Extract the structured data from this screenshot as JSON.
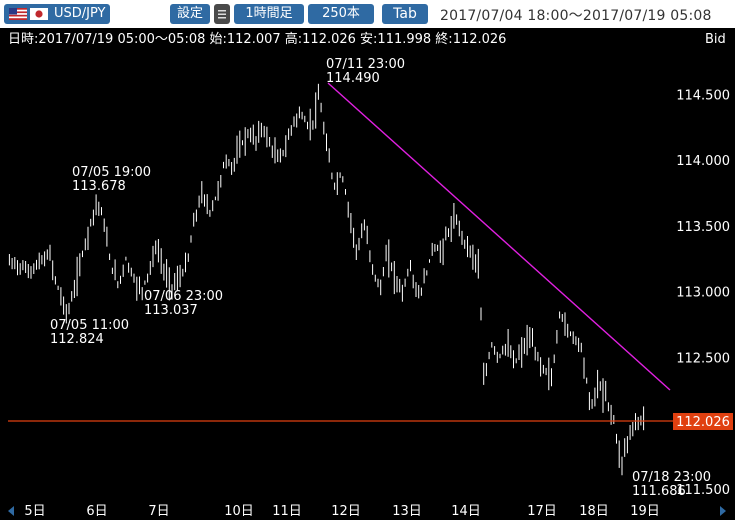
{
  "toolbar": {
    "pair_label": "USD/JPY",
    "settings_label": "設定",
    "timeframe_label": "1時間足",
    "bars_label": "250本",
    "tab_label": "Tab",
    "range_text": "2017/07/04 18:00～2017/07/19 05:08"
  },
  "info": {
    "ohlc_text": "日時:2017/07/19 05:00～05:08 始:112.007 高:112.026 安:111.998 終:112.026",
    "price_type": "Bid"
  },
  "colors": {
    "background": "#000000",
    "candle": "#ffffff",
    "trendline": "#e020e0",
    "current_price_line": "#e04010",
    "current_price_label_bg": "#e04010",
    "toolbar_button": "#2f6aa3"
  },
  "chart_data": {
    "type": "candlestick",
    "title": "",
    "x_ticks": [
      "5日",
      "6日",
      "7日",
      "10日",
      "11日",
      "12日",
      "13日",
      "14日",
      "17日",
      "18日",
      "19日"
    ],
    "y_ticks": [
      "114.500",
      "114.000",
      "113.500",
      "113.000",
      "112.500",
      "111.500"
    ],
    "ylim": [
      111.43,
      114.7
    ],
    "current_price": "112.026",
    "close_path": [
      [
        0,
        113.22
      ],
      [
        0.4,
        113.2
      ],
      [
        0.8,
        113.15
      ],
      [
        1.2,
        113.22
      ],
      [
        1.6,
        113.28
      ],
      [
        1.8,
        113.1
      ],
      [
        2.1,
        112.92
      ],
      [
        2.3,
        112.824
      ],
      [
        2.6,
        113.05
      ],
      [
        2.9,
        113.3
      ],
      [
        3.1,
        113.45
      ],
      [
        3.3,
        113.6
      ],
      [
        3.5,
        113.678
      ],
      [
        3.7,
        113.55
      ],
      [
        4.0,
        113.2
      ],
      [
        4.3,
        113.05
      ],
      [
        4.6,
        113.25
      ],
      [
        4.9,
        113.1
      ],
      [
        5.2,
        113.0
      ],
      [
        5.5,
        113.15
      ],
      [
        5.8,
        113.35
      ],
      [
        6.1,
        113.15
      ],
      [
        6.4,
        113.037
      ],
      [
        6.7,
        113.1
      ],
      [
        7.0,
        113.2
      ],
      [
        7.3,
        113.55
      ],
      [
        7.6,
        113.75
      ],
      [
        7.9,
        113.6
      ],
      [
        8.2,
        113.75
      ],
      [
        8.5,
        114.0
      ],
      [
        8.8,
        113.95
      ],
      [
        9.1,
        114.1
      ],
      [
        9.4,
        114.2
      ],
      [
        9.7,
        114.15
      ],
      [
        10.0,
        114.25
      ],
      [
        10.3,
        114.1
      ],
      [
        10.6,
        114.0
      ],
      [
        10.9,
        114.1
      ],
      [
        11.2,
        114.3
      ],
      [
        11.5,
        114.35
      ],
      [
        11.8,
        114.25
      ],
      [
        12.0,
        114.3
      ],
      [
        12.2,
        114.49
      ],
      [
        12.5,
        114.1
      ],
      [
        12.8,
        113.8
      ],
      [
        13.1,
        113.9
      ],
      [
        13.4,
        113.6
      ],
      [
        13.7,
        113.3
      ],
      [
        14.0,
        113.5
      ],
      [
        14.3,
        113.2
      ],
      [
        14.6,
        113.0
      ],
      [
        14.9,
        113.3
      ],
      [
        15.2,
        113.1
      ],
      [
        15.5,
        113.0
      ],
      [
        15.8,
        113.2
      ],
      [
        16.1,
        112.95
      ],
      [
        16.4,
        113.1
      ],
      [
        16.7,
        113.35
      ],
      [
        17.0,
        113.3
      ],
      [
        17.3,
        113.45
      ],
      [
        17.6,
        113.55
      ],
      [
        17.9,
        113.4
      ],
      [
        18.2,
        113.3
      ],
      [
        18.5,
        113.2
      ],
      [
        18.7,
        112.3
      ],
      [
        19.0,
        112.6
      ],
      [
        19.3,
        112.5
      ],
      [
        19.6,
        112.6
      ],
      [
        19.9,
        112.45
      ],
      [
        20.2,
        112.55
      ],
      [
        20.5,
        112.65
      ],
      [
        20.8,
        112.5
      ],
      [
        21.1,
        112.4
      ],
      [
        21.4,
        112.35
      ],
      [
        21.7,
        112.85
      ],
      [
        22.0,
        112.7
      ],
      [
        22.3,
        112.65
      ],
      [
        22.6,
        112.55
      ],
      [
        22.9,
        112.1
      ],
      [
        23.2,
        112.3
      ],
      [
        23.5,
        112.2
      ],
      [
        23.8,
        112.05
      ],
      [
        24.1,
        111.686
      ],
      [
        24.4,
        111.9
      ],
      [
        24.7,
        112.0
      ],
      [
        25.0,
        112.026
      ]
    ],
    "annotations": [
      {
        "label": "07/05 19:00",
        "value": "113.678"
      },
      {
        "label": "07/05 11:00",
        "value": "112.824"
      },
      {
        "label": "07/06 23:00",
        "value": "113.037"
      },
      {
        "label": "07/11 23:00",
        "value": "114.490"
      },
      {
        "label": "07/18 23:00",
        "value": "111.686"
      }
    ]
  }
}
